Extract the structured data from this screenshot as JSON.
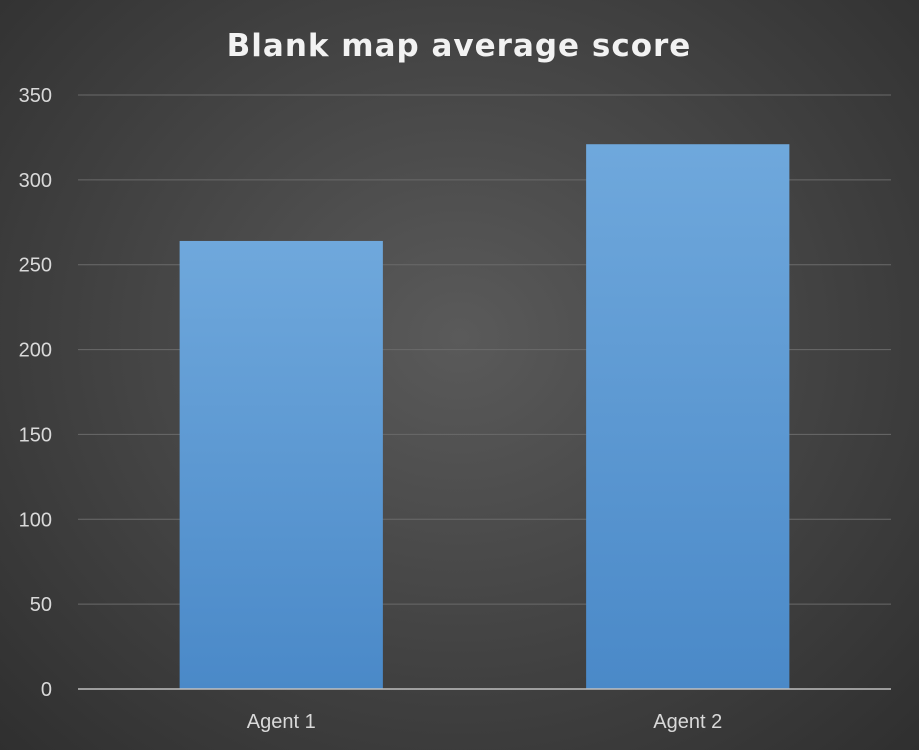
{
  "chart_data": {
    "type": "bar",
    "title": "Blank map average score",
    "categories": [
      "Agent 1",
      "Agent 2"
    ],
    "values": [
      264,
      321
    ],
    "ylim": [
      0,
      350
    ],
    "yticks": [
      0,
      50,
      100,
      150,
      200,
      250,
      300,
      350
    ],
    "xlabel": "",
    "ylabel": "",
    "grid": true,
    "legend": "none",
    "colors": {
      "bar_top": "#6fa8dc",
      "bar_bottom": "#4a89c8",
      "background": "#404040"
    }
  }
}
